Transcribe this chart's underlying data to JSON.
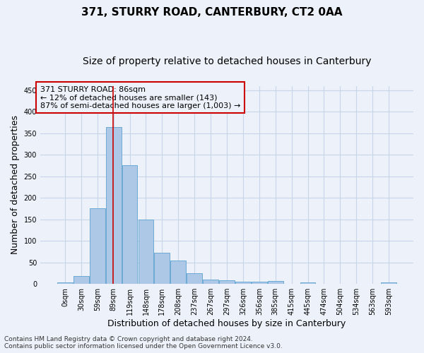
{
  "title": "371, STURRY ROAD, CANTERBURY, CT2 0AA",
  "subtitle": "Size of property relative to detached houses in Canterbury",
  "xlabel": "Distribution of detached houses by size in Canterbury",
  "ylabel": "Number of detached properties",
  "categories": [
    "0sqm",
    "30sqm",
    "59sqm",
    "89sqm",
    "119sqm",
    "148sqm",
    "178sqm",
    "208sqm",
    "237sqm",
    "267sqm",
    "297sqm",
    "326sqm",
    "356sqm",
    "385sqm",
    "415sqm",
    "445sqm",
    "474sqm",
    "504sqm",
    "534sqm",
    "563sqm",
    "593sqm"
  ],
  "values": [
    3,
    18,
    175,
    365,
    275,
    150,
    72,
    55,
    25,
    10,
    8,
    5,
    5,
    7,
    0,
    3,
    0,
    0,
    0,
    0,
    3
  ],
  "bar_color": "#adc8e6",
  "bar_edge_color": "#6aaad4",
  "grid_color": "#c8d4e8",
  "background_color": "#edf2fa",
  "annotation_line1": "371 STURRY ROAD: 86sqm",
  "annotation_line2": "← 12% of detached houses are smaller (143)",
  "annotation_line3": "87% of semi-detached houses are larger (1,003) →",
  "annotation_box_color": "#cc0000",
  "red_line_x": 2.97,
  "ylim": [
    0,
    460
  ],
  "yticks": [
    0,
    50,
    100,
    150,
    200,
    250,
    300,
    350,
    400,
    450
  ],
  "footnote": "Contains HM Land Registry data © Crown copyright and database right 2024.\nContains public sector information licensed under the Open Government Licence v3.0.",
  "title_fontsize": 11,
  "subtitle_fontsize": 10,
  "xlabel_fontsize": 9,
  "ylabel_fontsize": 9,
  "annotation_fontsize": 8,
  "tick_fontsize": 7,
  "footnote_fontsize": 6.5
}
